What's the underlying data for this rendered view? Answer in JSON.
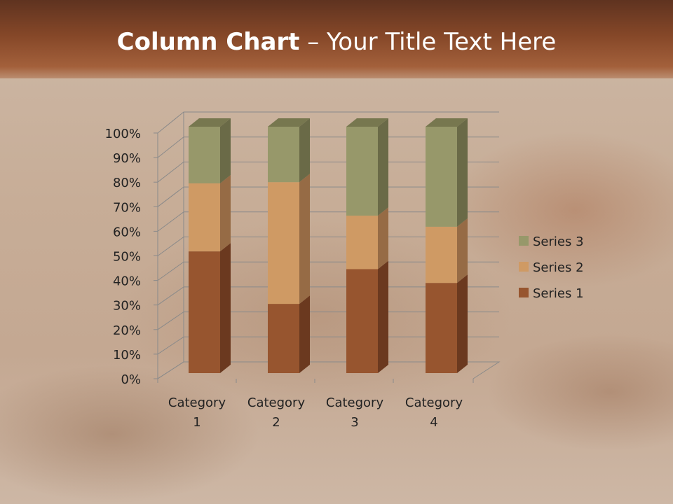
{
  "slide": {
    "title_bold": "Column Chart",
    "title_rest": " – Your Title Text Here"
  },
  "chart_data": {
    "type": "bar",
    "stacking": "percent",
    "three_d": true,
    "categories": [
      "Category 1",
      "Category 2",
      "Category 3",
      "Category 4"
    ],
    "category_lines": [
      [
        "Category",
        "1"
      ],
      [
        "Category",
        "2"
      ],
      [
        "Category",
        "3"
      ],
      [
        "Category",
        "4"
      ]
    ],
    "series": [
      {
        "name": "Series 1",
        "values": [
          49.4,
          28.1,
          42.2,
          36.6
        ],
        "color": "#97552f",
        "side": "#6b391f"
      },
      {
        "name": "Series 2",
        "values": [
          27.6,
          49.4,
          21.7,
          22.8
        ],
        "color": "#cf9a64",
        "side": "#966b45"
      },
      {
        "name": "Series 3",
        "values": [
          23.0,
          22.5,
          36.1,
          40.6
        ],
        "color": "#97986a",
        "side": "#6a6a47"
      }
    ],
    "yticks": [
      "0%",
      "10%",
      "20%",
      "30%",
      "40%",
      "50%",
      "60%",
      "70%",
      "80%",
      "90%",
      "100%"
    ],
    "ylim": [
      0,
      100
    ],
    "grid": true,
    "legend": "right"
  }
}
